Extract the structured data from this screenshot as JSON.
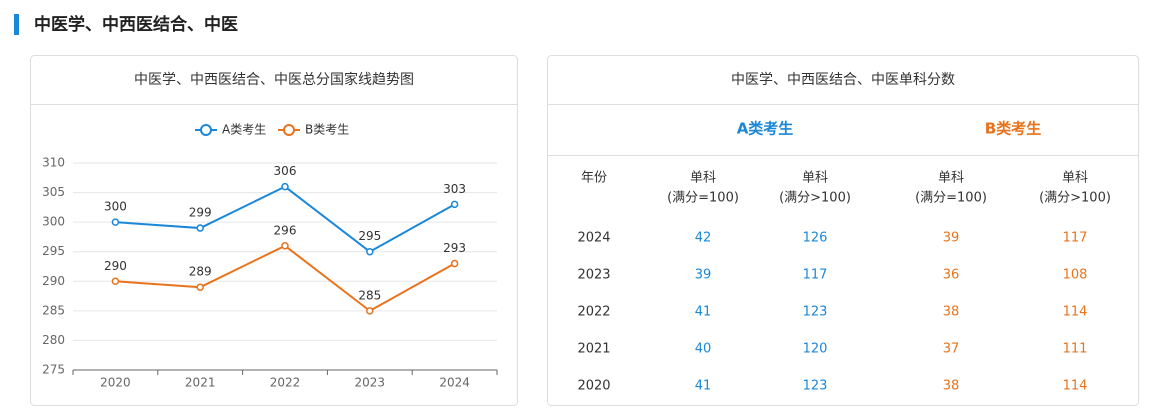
{
  "page": {
    "heading": "中医学、中西医结合、中医"
  },
  "chart_data": {
    "type": "line",
    "title": "中医学、中西医结合、中医总分国家线趋势图",
    "categories": [
      "2020",
      "2021",
      "2022",
      "2023",
      "2024"
    ],
    "series": [
      {
        "name": "A类考生",
        "color": "#1a87d9",
        "values": [
          300,
          299,
          306,
          295,
          303
        ]
      },
      {
        "name": "B类考生",
        "color": "#e8731c",
        "values": [
          290,
          289,
          296,
          285,
          293
        ]
      }
    ],
    "ylim": [
      275,
      310
    ],
    "yticks": [
      275,
      280,
      285,
      290,
      295,
      300,
      305,
      310
    ],
    "grid": true,
    "legend": "top"
  },
  "table": {
    "title": "中医学、中西医结合、中医单科分数",
    "groups": [
      {
        "name": "A类考生",
        "color": "#1a87d9"
      },
      {
        "name": "B类考生",
        "color": "#e8731c"
      }
    ],
    "header": [
      [
        "年份"
      ],
      [
        "单科",
        "(满分=100)"
      ],
      [
        "单科",
        "(满分>100)"
      ],
      [
        "单科",
        "(满分=100)"
      ],
      [
        "单科",
        "(满分>100)"
      ]
    ],
    "rows": [
      [
        "2024",
        "42",
        "126",
        "39",
        "117"
      ],
      [
        "2023",
        "39",
        "117",
        "36",
        "108"
      ],
      [
        "2022",
        "41",
        "123",
        "38",
        "114"
      ],
      [
        "2021",
        "40",
        "120",
        "37",
        "111"
      ],
      [
        "2020",
        "41",
        "123",
        "38",
        "114"
      ]
    ]
  }
}
